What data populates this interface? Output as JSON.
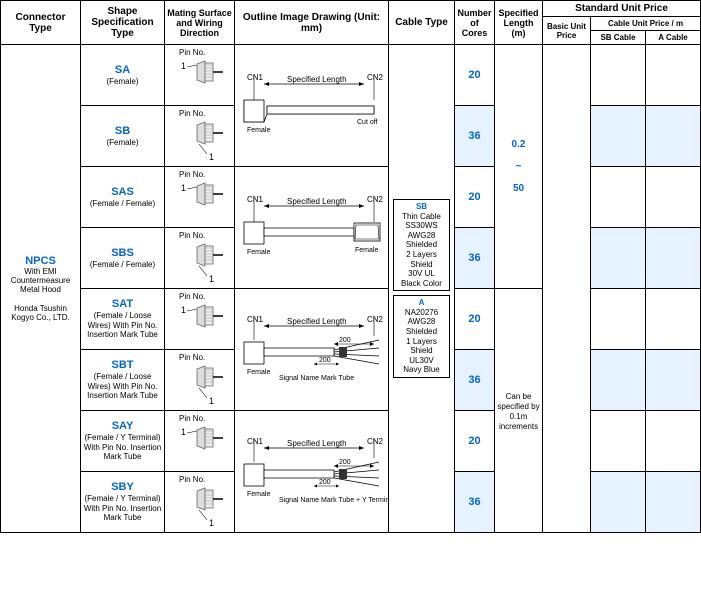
{
  "headers": {
    "connector_type": "Connector Type",
    "shape_spec": "Shape Specification Type",
    "mating": "Mating Surface and Wiring Direction",
    "outline": "Outline Image Drawing (Unit: mm)",
    "cable_type": "Cable Type",
    "num_cores": "Number of Cores",
    "spec_length": "Specified Length (m)",
    "std_price": "Standard Unit Price",
    "basic_price": "Basic Unit Price",
    "cable_price": "Cable Unit Price / m",
    "sb_cable": "SB Cable",
    "a_cable": "A Cable"
  },
  "connector": {
    "code": "NPCS",
    "desc1": "With EMI Countermeasure Metal Hood",
    "desc2": "Honda Tsushin Kogyo Co., LTD."
  },
  "shape_rows": [
    {
      "code": "SA",
      "desc": "(Female)",
      "cores": "20",
      "hl": false,
      "top_pin": "1",
      "bot_pin": ""
    },
    {
      "code": "SB",
      "desc": "(Female)",
      "cores": "36",
      "hl": true,
      "top_pin": "",
      "bot_pin": "1"
    },
    {
      "code": "SAS",
      "desc": "(Female / Female)",
      "cores": "20",
      "hl": false,
      "top_pin": "1",
      "bot_pin": ""
    },
    {
      "code": "SBS",
      "desc": "(Female / Female)",
      "cores": "36",
      "hl": true,
      "top_pin": "",
      "bot_pin": "1"
    },
    {
      "code": "SAT",
      "desc": "(Female / Loose Wires) With Pin No. Insertion Mark Tube",
      "cores": "20",
      "hl": false,
      "top_pin": "1",
      "bot_pin": ""
    },
    {
      "code": "SBT",
      "desc": "(Female / Loose Wires) With Pin No. Insertion Mark Tube",
      "cores": "36",
      "hl": true,
      "top_pin": "",
      "bot_pin": "1"
    },
    {
      "code": "SAY",
      "desc": "(Female / Y Terminal) With Pin No. Insertion Mark Tube",
      "cores": "20",
      "hl": false,
      "top_pin": "1",
      "bot_pin": ""
    },
    {
      "code": "SBY",
      "desc": "(Female / Y Terminal) With Pin No. Insertion Mark Tube",
      "cores": "36",
      "hl": true,
      "top_pin": "",
      "bot_pin": "1"
    }
  ],
  "cable_types": {
    "sb": {
      "code": "SB",
      "lines": [
        "Thin Cable",
        "SS30WS",
        "AWG28",
        "Shielded",
        "2 Layers Shield",
        "30V UL",
        "Black Color"
      ]
    },
    "a": {
      "code": "A",
      "lines": [
        "NA20276",
        "AWG28",
        "Shielded",
        "1 Layers Shield",
        "UL30V",
        "Navy Blue"
      ]
    }
  },
  "spec_length": {
    "range": "0.2 ~ 50",
    "note": "Can be specified by 0.1m increments"
  },
  "labels": {
    "pin_no": "Pin No.",
    "cn1": "CN1",
    "cn2": "CN2",
    "specified_length": "Specified Length",
    "female": "Female",
    "cut_off": "Cut off",
    "signal_mark": "Signal Name Mark Tube",
    "signal_mark_y": "Signal Name Mark Tube + Y Terminal",
    "dim200": "200"
  },
  "colors": {
    "blue": "#0066cc",
    "highlight": "#e6f2ff"
  },
  "col_widths": {
    "conn": 80,
    "shape": 84,
    "mating": 70,
    "outline": 154,
    "cable": 66,
    "cores": 40,
    "spec": 48,
    "basic": 48,
    "sb": 55,
    "a": 55
  }
}
